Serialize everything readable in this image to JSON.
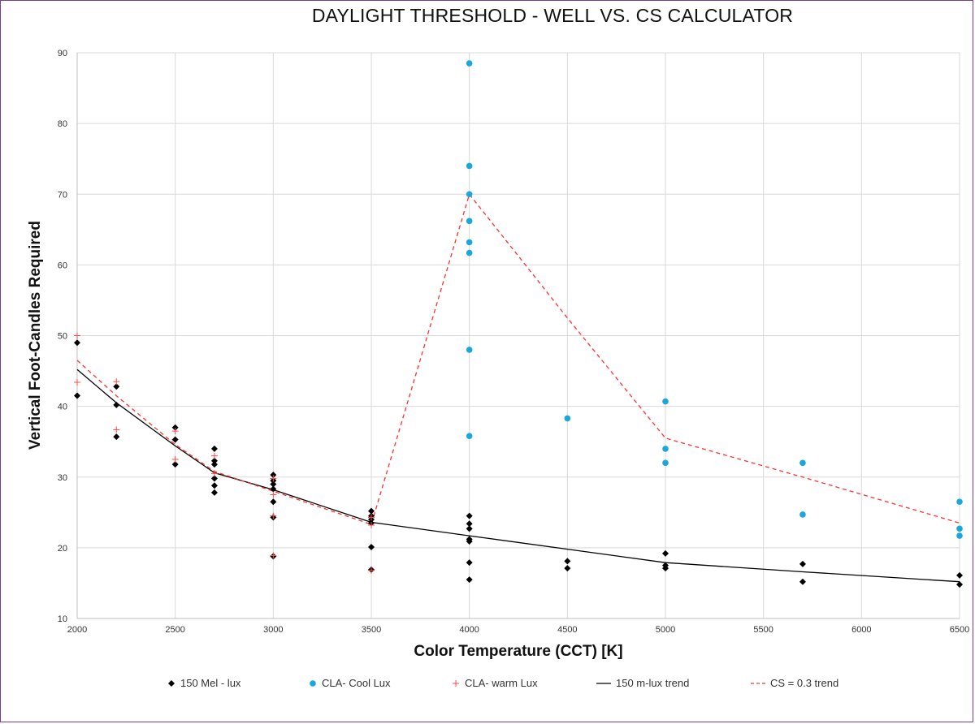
{
  "chart_data": {
    "type": "scatter",
    "title": "DAYLIGHT THRESHOLD - WELL VS. CS CALCULATOR",
    "xlabel": "Color Temperature (CCT) [K]",
    "ylabel": "Vertical Foot-Candles Required",
    "xlim": [
      2000,
      6500
    ],
    "ylim": [
      10,
      90
    ],
    "x_ticks": [
      2000,
      2500,
      3000,
      3500,
      4000,
      4500,
      5000,
      5500,
      6000,
      6500
    ],
    "y_ticks": [
      10,
      20,
      30,
      40,
      50,
      60,
      70,
      80,
      90
    ],
    "grid": true,
    "legend_position": "bottom",
    "series": [
      {
        "name": "150 Mel - lux",
        "kind": "scatter",
        "marker": "diamond",
        "color": "#000000",
        "points": [
          [
            2000,
            49
          ],
          [
            2000,
            41.5
          ],
          [
            2200,
            42.8
          ],
          [
            2200,
            40.2
          ],
          [
            2200,
            35.7
          ],
          [
            2500,
            37
          ],
          [
            2500,
            35.3
          ],
          [
            2500,
            31.8
          ],
          [
            2700,
            34
          ],
          [
            2700,
            32.3
          ],
          [
            2700,
            31.8
          ],
          [
            2700,
            29.8
          ],
          [
            2700,
            28.8
          ],
          [
            2700,
            27.8
          ],
          [
            3000,
            30.3
          ],
          [
            3000,
            29.5
          ],
          [
            3000,
            29
          ],
          [
            3000,
            28.3
          ],
          [
            3000,
            26.5
          ],
          [
            3000,
            24.3
          ],
          [
            3000,
            18.8
          ],
          [
            3500,
            25.2
          ],
          [
            3500,
            24.5
          ],
          [
            3500,
            24
          ],
          [
            3500,
            23.5
          ],
          [
            3500,
            20.1
          ],
          [
            3500,
            16.9
          ],
          [
            4000,
            24.5
          ],
          [
            4000,
            23.4
          ],
          [
            4000,
            22.7
          ],
          [
            4000,
            21.2
          ],
          [
            4000,
            20.9
          ],
          [
            4000,
            17.9
          ],
          [
            4000,
            15.5
          ],
          [
            4500,
            18.1
          ],
          [
            4500,
            17.1
          ],
          [
            5000,
            19.2
          ],
          [
            5000,
            17.5
          ],
          [
            5000,
            17.1
          ],
          [
            5700,
            17.7
          ],
          [
            5700,
            15.2
          ],
          [
            6500,
            16.1
          ],
          [
            6500,
            14.8
          ]
        ]
      },
      {
        "name": "CLA- Cool Lux",
        "kind": "scatter",
        "marker": "circle",
        "color": "#1aa7dc",
        "points": [
          [
            4000,
            88.5
          ],
          [
            4000,
            74
          ],
          [
            4000,
            70
          ],
          [
            4000,
            66.2
          ],
          [
            4000,
            63.2
          ],
          [
            4000,
            61.7
          ],
          [
            4000,
            48
          ],
          [
            4000,
            35.8
          ],
          [
            4500,
            38.3
          ],
          [
            5000,
            40.7
          ],
          [
            5000,
            34
          ],
          [
            5000,
            32
          ],
          [
            5700,
            32
          ],
          [
            5700,
            24.7
          ],
          [
            6500,
            26.5
          ],
          [
            6500,
            22.7
          ],
          [
            6500,
            21.7
          ]
        ]
      },
      {
        "name": "CLA- warm Lux",
        "kind": "scatter",
        "marker": "plus",
        "color": "#ff4a4a",
        "points": [
          [
            2000,
            50
          ],
          [
            2000,
            43.4
          ],
          [
            2200,
            43.5
          ],
          [
            2200,
            36.7
          ],
          [
            2500,
            36.5
          ],
          [
            2500,
            32.5
          ],
          [
            2700,
            33
          ],
          [
            2700,
            30.5
          ],
          [
            3000,
            29.8
          ],
          [
            3000,
            27.5
          ],
          [
            3000,
            24.5
          ],
          [
            3000,
            18.9
          ],
          [
            3500,
            24.3
          ],
          [
            3500,
            23.2
          ],
          [
            3500,
            16.8
          ]
        ]
      },
      {
        "name": "150 m-lux trend",
        "kind": "line",
        "color": "#000000",
        "dash": "",
        "points": [
          [
            2000,
            45.2
          ],
          [
            2200,
            40.5
          ],
          [
            2500,
            34.4
          ],
          [
            2700,
            30.6
          ],
          [
            3000,
            28.2
          ],
          [
            3500,
            23.6
          ],
          [
            4000,
            21.7
          ],
          [
            4500,
            19.8
          ],
          [
            5000,
            17.9
          ],
          [
            5700,
            16.6
          ],
          [
            6500,
            15.2
          ]
        ]
      },
      {
        "name": "CS = 0.3 trend",
        "kind": "line",
        "color": "#ff3030",
        "dash": "5,4",
        "points": [
          [
            2000,
            46.5
          ],
          [
            2200,
            41.5
          ],
          [
            2500,
            34.6
          ],
          [
            2700,
            30.8
          ],
          [
            3000,
            28
          ],
          [
            3500,
            23.3
          ],
          [
            4000,
            70
          ],
          [
            4500,
            52.5
          ],
          [
            5000,
            35.5
          ],
          [
            5700,
            30
          ],
          [
            6500,
            23.5
          ]
        ]
      }
    ]
  }
}
